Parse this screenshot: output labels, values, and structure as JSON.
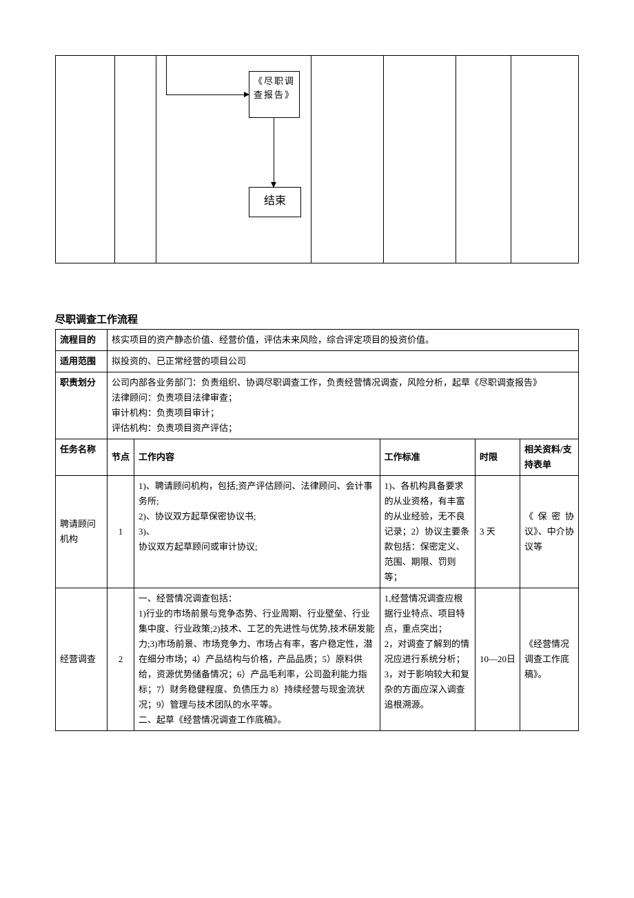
{
  "flowchart": {
    "box1": "《尽职调查报告》",
    "box2": "结束"
  },
  "section_title": "尽职调查工作流程",
  "meta_rows": {
    "purpose_label": "流程目的",
    "purpose_value": "核实项目的资产静态价值、经营价值，评估未来风险，综合评定项目的投资价值。",
    "scope_label": "适用范围",
    "scope_value": "拟投资的、已正常经营的项目公司",
    "resp_label": "职责划分",
    "resp_line1": "公司内部各业务部门：负责组织、协调尽职调查工作，负责经营情况调查，风险分析，起草《尽职调查报告》",
    "resp_line2": "法律顾问：负责项目法律审查；",
    "resp_line3": "审计机构：负责项目审计；",
    "resp_line4": "评估机构：负责项目资产评估；"
  },
  "columns": {
    "task": "任务名称",
    "node": "节点",
    "content": "工作内容",
    "standard": "工作标准",
    "time": "时限",
    "doc": "相关资料/支持表单"
  },
  "rows": [
    {
      "task": "聘请顾问机构",
      "node": "1",
      "content": "1)、聘请顾问机构，包括;资产评估顾问、法律顾问、会计事务所;\n2)、协议双方起草保密协议书;\n3)、\n协议双方起草顾问或审计协议;",
      "standard": "1)、各机构具备要求的从业资格，有丰富的从业经验，无不良记录；2）协议主要条款包括：保密定义、范围、期限、罚则等；",
      "time": "3 天",
      "doc": "《保密协议》、中介协议等"
    },
    {
      "task": "经营调查",
      "node": "2",
      "content": "一、经营情况调查包括：\n1)行业的市场前景与竞争态势、行业周期、行业壁垒、行业集中度、行业政策;2)技术、工艺的先进性与优势,技术研发能力;3)市场前景、市场竞争力、市场占有率，客户稳定性，潜在细分市场；4）产品结构与价格，产品品质；5）原料供给，资源优势储备情况；6）产品毛利率，公司盈利能力指标；7）财务稳健程度、负债压力 8）持续经营与现金流状况；9）管理与技术团队的水平等。\n二、起草《经营情况调查工作底稿》。",
      "standard": "1,经营情况调查应根据行业特点、项目特点，重点突出；\n2，对调查了解到的情况应进行系统分析；\n3，对于影响较大和复杂的方面应深入调查追根溯源。",
      "time": "10—20日",
      "doc": "《经营情况调查工作底稿》。"
    }
  ]
}
